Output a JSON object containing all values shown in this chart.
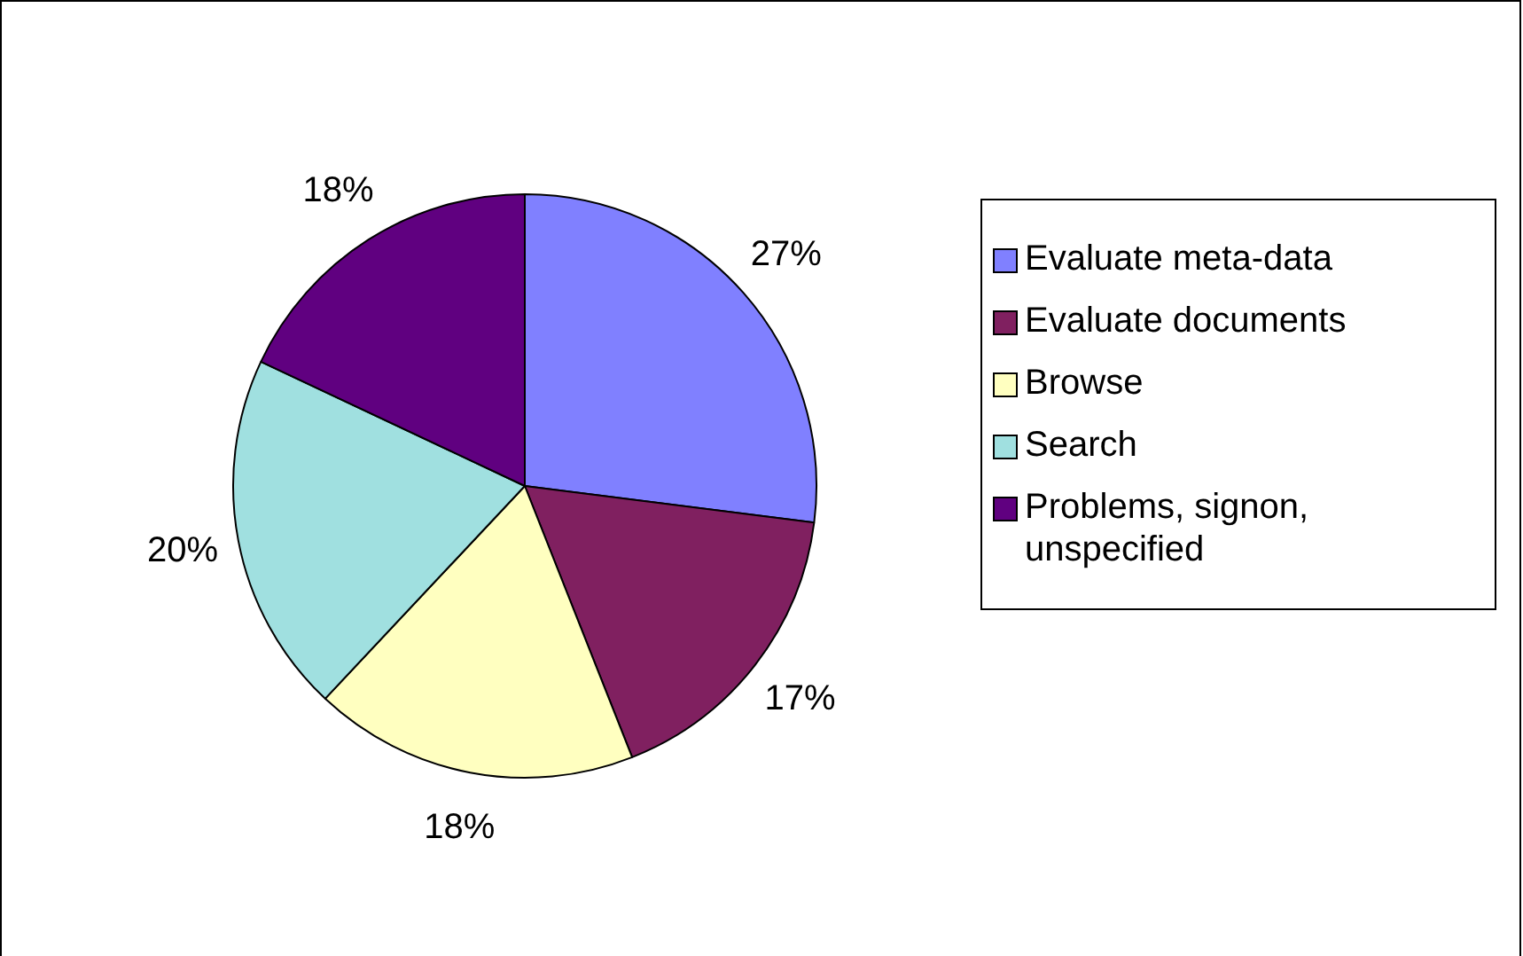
{
  "chart_data": {
    "type": "pie",
    "categories": [
      "Evaluate meta-data",
      "Evaluate documents",
      "Browse",
      "Search",
      "Problems, signon, unspecified"
    ],
    "values": [
      27,
      17,
      18,
      20,
      18
    ],
    "colors": [
      "#8080ff",
      "#802060",
      "#ffffc0",
      "#a0e0e0",
      "#600080"
    ],
    "value_labels": [
      "27%",
      "17%",
      "18%",
      "20%",
      "18%"
    ],
    "legend": "right"
  }
}
